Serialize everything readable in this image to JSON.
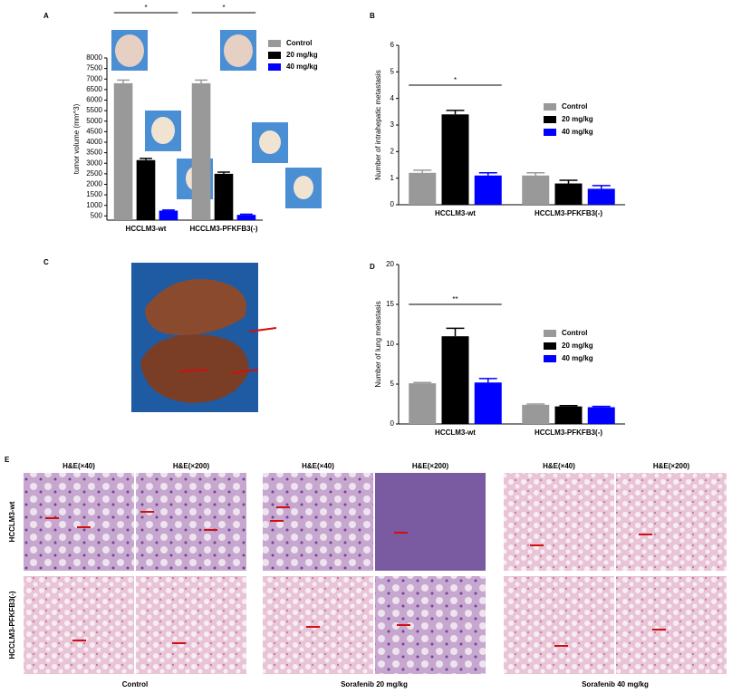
{
  "chart_data": [
    {
      "type": "bar",
      "panel": "A",
      "ylabel": "tumor volume (mm^3)",
      "categories": [
        "HCCLM3-wt",
        "HCCLM3-PFKFB3(-)"
      ],
      "series": [
        {
          "name": "Control",
          "color": "#999999",
          "values": [
            6800,
            6800
          ],
          "errors": [
            150,
            150
          ]
        },
        {
          "name": "20 mg/kg",
          "color": "#000000",
          "values": [
            3150,
            2500
          ],
          "errors": [
            80,
            80
          ]
        },
        {
          "name": "40 mg/kg",
          "color": "#0000ff",
          "values": [
            750,
            550
          ],
          "errors": [
            30,
            30
          ]
        }
      ],
      "ylim": [
        300,
        8000
      ],
      "yticks": [
        500,
        1000,
        1500,
        2000,
        2500,
        3000,
        3500,
        4000,
        4500,
        5000,
        5500,
        6000,
        6500,
        7000,
        7500,
        8000
      ],
      "significance": [
        "*",
        "*"
      ]
    },
    {
      "type": "bar",
      "panel": "B",
      "ylabel": "Number of intrahepatic metastasis",
      "categories": [
        "HCCLM3-wt",
        "HCCLM3-PFKFB3(-)"
      ],
      "series": [
        {
          "name": "Control",
          "color": "#999999",
          "values": [
            1.2,
            1.1
          ],
          "errors": [
            0.1,
            0.1
          ]
        },
        {
          "name": "20 mg/kg",
          "color": "#000000",
          "values": [
            3.4,
            0.8
          ],
          "errors": [
            0.15,
            0.12
          ]
        },
        {
          "name": "40 mg/kg",
          "color": "#0000ff",
          "values": [
            1.1,
            0.6
          ],
          "errors": [
            0.1,
            0.12
          ]
        }
      ],
      "ylim": [
        0,
        6
      ],
      "yticks": [
        0,
        1,
        2,
        3,
        4,
        5,
        6
      ],
      "significance": [
        "*"
      ]
    },
    {
      "type": "bar",
      "panel": "D",
      "ylabel": "Number of lung metastasis",
      "categories": [
        "HCCLM3-wt",
        "HCCLM3-PFKFB3(-)"
      ],
      "series": [
        {
          "name": "Control",
          "color": "#999999",
          "values": [
            5.1,
            2.4
          ],
          "errors": [
            0.1,
            0.1
          ]
        },
        {
          "name": "20 mg/kg",
          "color": "#000000",
          "values": [
            11.0,
            2.2
          ],
          "errors": [
            1.0,
            0.1
          ]
        },
        {
          "name": "40 mg/kg",
          "color": "#0000ff",
          "values": [
            5.2,
            2.1
          ],
          "errors": [
            0.5,
            0.1
          ]
        }
      ],
      "ylim": [
        0,
        20
      ],
      "yticks": [
        0,
        5,
        10,
        15,
        20
      ],
      "significance": [
        "**"
      ]
    }
  ],
  "figure": {
    "panel_c": "C",
    "panel_e": "E",
    "he_labels": [
      "H&E(×40)",
      "H&E(×200)",
      "H&E(×40)",
      "H&E(×200)",
      "H&E(×40)",
      "H&E(×200)"
    ],
    "row_labels": [
      "HCCLM3-wt",
      "HCCLM3-PFKFB3(-)"
    ],
    "group_labels": [
      "Control",
      "Sorafenib 20 mg/kg",
      "Sorafenib 40 mg/kg"
    ]
  }
}
